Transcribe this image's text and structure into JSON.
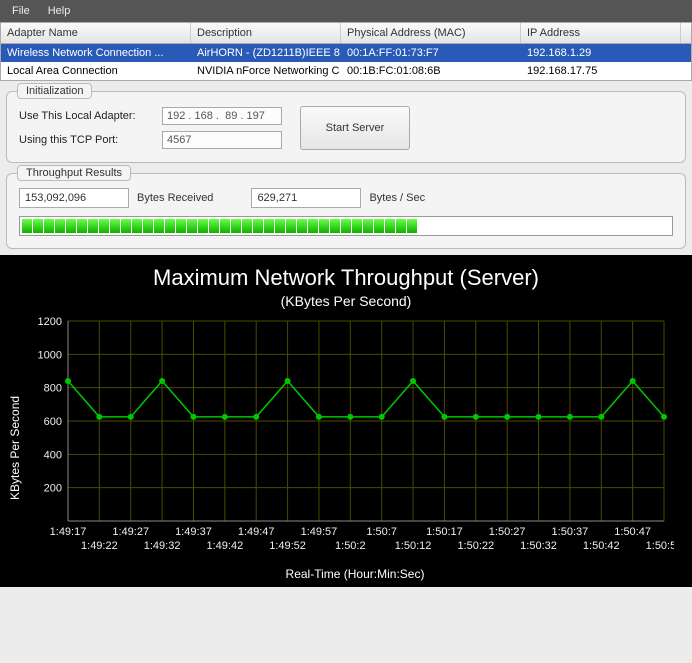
{
  "menu": {
    "file": "File",
    "help": "Help"
  },
  "adapters": {
    "columns": [
      "Adapter Name",
      "Description",
      "Physical Address (MAC)",
      "IP Address"
    ],
    "rows": [
      {
        "name": "Wireless Network Connection ...",
        "desc": "AirHORN - (ZD1211B)IEEE 8...",
        "mac": "00:1A:FF:01:73:F7",
        "ip": "192.168.1.29",
        "selected": true
      },
      {
        "name": "Local Area Connection",
        "desc": "NVIDIA nForce Networking C...",
        "mac": "00:1B:FC:01:08:6B",
        "ip": "192.168.17.75",
        "selected": false
      }
    ]
  },
  "init": {
    "title": "Initialization",
    "adapter_label": "Use This Local Adapter:",
    "adapter_value": "192 . 168 .  89 . 197",
    "port_label": "Using this TCP Port:",
    "port_value": "4567",
    "start_label": "Start Server"
  },
  "throughput": {
    "title": "Throughput Results",
    "bytes_received_value": "153,092,096",
    "bytes_received_label": "Bytes Received",
    "bytes_sec_value": "629,271",
    "bytes_sec_label": "Bytes / Sec",
    "progress_segments": 36,
    "progress_total": 66
  },
  "chart": {
    "type": "line",
    "title": "Maximum Network Throughput (Server)",
    "subtitle": "(KBytes Per Second)",
    "title_fontsize": 22,
    "subtitle_fontsize": 14,
    "tick_fontsize": 11,
    "ylabel": "KBytes Per Second",
    "xlabel": "Real-Time (Hour:Min:Sec)",
    "background_color": "#000000",
    "grid_color": "#4a4a00",
    "line_color": "#00c800",
    "text_color": "#eeeeee",
    "ylim": [
      0,
      1200
    ],
    "ytick_step": 200,
    "x_ticks_upper": [
      "1:49:17",
      "1:49:27",
      "1:49:37",
      "1:49:47",
      "1:49:57",
      "1:50:7",
      "1:50:17",
      "1:50:27",
      "1:50:37",
      "1:50:47"
    ],
    "x_ticks_lower": [
      "1:49:22",
      "1:49:32",
      "1:49:42",
      "1:49:52",
      "1:50:2",
      "1:50:12",
      "1:50:22",
      "1:50:32",
      "1:50:42",
      "1:50:52"
    ],
    "values": [
      840,
      625,
      625,
      840,
      625,
      625,
      625,
      840,
      625,
      625,
      625,
      840,
      625,
      625,
      625,
      625,
      625,
      625,
      840,
      625
    ],
    "marker": "circle",
    "marker_size": 3
  }
}
